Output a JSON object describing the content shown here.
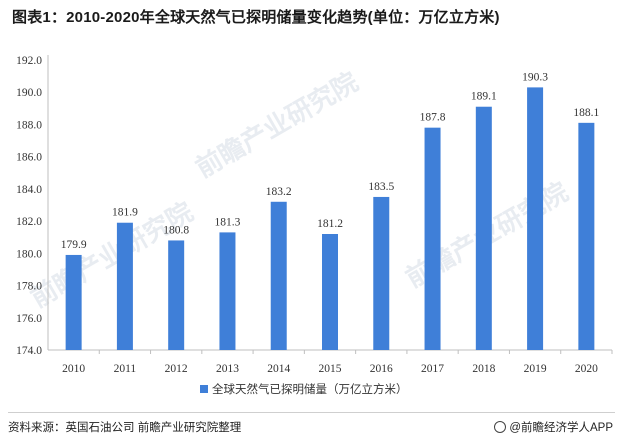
{
  "title": "图表1：2010-2020年全球天然气已探明储量变化趋势(单位：万亿立方米)",
  "source": "资料来源：英国石油公司 前瞻产业研究院整理",
  "brand": "@前瞻经济学人APP",
  "watermark": "前瞻产业研究院",
  "colors": {
    "bar": "#3f7fd8",
    "axis": "#bfbfbf",
    "grid": "#e6e6e6"
  },
  "chart_data": {
    "type": "bar",
    "categories": [
      "2010",
      "2011",
      "2012",
      "2013",
      "2014",
      "2015",
      "2016",
      "2017",
      "2018",
      "2019",
      "2020"
    ],
    "series": [
      {
        "name": "全球天然气已探明储量（万亿立方米）",
        "values": [
          179.9,
          181.9,
          180.8,
          181.3,
          183.2,
          181.2,
          183.5,
          187.8,
          189.1,
          190.3,
          188.1
        ]
      }
    ],
    "yticks": [
      "174.0",
      "176.0",
      "178.0",
      "180.0",
      "182.0",
      "184.0",
      "186.0",
      "188.0",
      "190.0",
      "192.0"
    ],
    "ylim": [
      174,
      192
    ],
    "legend": "bottom",
    "grid": false
  }
}
